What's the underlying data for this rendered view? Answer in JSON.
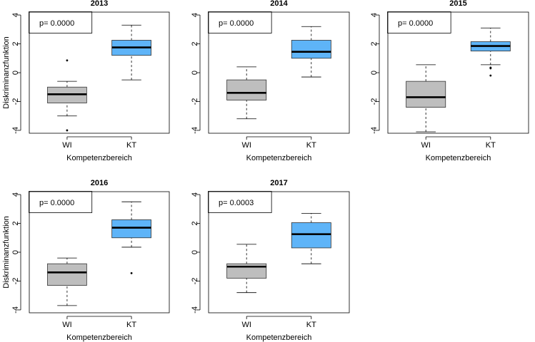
{
  "colors": {
    "WI": "#bebebe",
    "KT": "#5eb4f8",
    "median": "#000000",
    "frame": "#000000"
  },
  "chart_data": [
    {
      "type": "boxplot",
      "title": "2013",
      "xlabel": "Kompetenzbereich",
      "ylabel": "Diskriminanzfunktion",
      "yticks": [
        "4",
        "2",
        "0",
        "-2",
        "-4"
      ],
      "ylim": [
        -4.2,
        4.2
      ],
      "annotation": "p= 0.0000",
      "categories": [
        "WI",
        "KT"
      ],
      "boxes": [
        {
          "name": "WI",
          "whisker_low": -3.0,
          "q1": -2.1,
          "median": -1.5,
          "q3": -1.0,
          "whisker_high": -0.6,
          "outliers": [
            0.85,
            -4.0
          ]
        },
        {
          "name": "KT",
          "whisker_low": -0.5,
          "q1": 1.2,
          "median": 1.75,
          "q3": 2.25,
          "whisker_high": 3.3,
          "outliers": []
        }
      ]
    },
    {
      "type": "boxplot",
      "title": "2014",
      "xlabel": "Kompetenzbereich",
      "ylabel": "",
      "yticks": [
        "4",
        "2",
        "0",
        "-2",
        "-4"
      ],
      "ylim": [
        -4.2,
        4.2
      ],
      "annotation": "p= 0.0000",
      "categories": [
        "WI",
        "KT"
      ],
      "boxes": [
        {
          "name": "WI",
          "whisker_low": -3.2,
          "q1": -1.9,
          "median": -1.4,
          "q3": -0.5,
          "whisker_high": 0.4,
          "outliers": []
        },
        {
          "name": "KT",
          "whisker_low": -0.3,
          "q1": 1.0,
          "median": 1.45,
          "q3": 2.25,
          "whisker_high": 3.2,
          "outliers": []
        }
      ]
    },
    {
      "type": "boxplot",
      "title": "2015",
      "xlabel": "Kompetenzbereich",
      "ylabel": "",
      "yticks": [
        "4",
        "2",
        "0",
        "-2",
        "-4"
      ],
      "ylim": [
        -4.2,
        4.2
      ],
      "annotation": "p= 0.0000",
      "categories": [
        "WI",
        "KT"
      ],
      "boxes": [
        {
          "name": "WI",
          "whisker_low": -4.1,
          "q1": -2.4,
          "median": -1.7,
          "q3": -0.6,
          "whisker_high": 0.55,
          "outliers": []
        },
        {
          "name": "KT",
          "whisker_low": 0.55,
          "q1": 1.5,
          "median": 1.85,
          "q3": 2.15,
          "whisker_high": 3.1,
          "outliers": [
            0.35,
            0.3,
            -0.2
          ]
        }
      ]
    },
    {
      "type": "boxplot",
      "title": "2016",
      "xlabel": "Kompetenzbereich",
      "ylabel": "Diskriminanzfunktion",
      "yticks": [
        "4",
        "2",
        "0",
        "-2",
        "-4"
      ],
      "ylim": [
        -4.2,
        4.2
      ],
      "annotation": "p= 0.0000",
      "categories": [
        "WI",
        "KT"
      ],
      "boxes": [
        {
          "name": "WI",
          "whisker_low": -3.7,
          "q1": -2.3,
          "median": -1.4,
          "q3": -0.8,
          "whisker_high": -0.4,
          "outliers": []
        },
        {
          "name": "KT",
          "whisker_low": 0.35,
          "q1": 1.0,
          "median": 1.7,
          "q3": 2.25,
          "whisker_high": 3.5,
          "outliers": [
            -1.45
          ]
        }
      ]
    },
    {
      "type": "boxplot",
      "title": "2017",
      "xlabel": "Kompetenzbereich",
      "ylabel": "",
      "yticks": [
        "4",
        "2",
        "0",
        "-2",
        "-4"
      ],
      "ylim": [
        -4.2,
        4.2
      ],
      "annotation": "p= 0.0003",
      "categories": [
        "WI",
        "KT"
      ],
      "boxes": [
        {
          "name": "WI",
          "whisker_low": -2.8,
          "q1": -1.8,
          "median": -1.0,
          "q3": -0.8,
          "whisker_high": 0.55,
          "outliers": []
        },
        {
          "name": "KT",
          "whisker_low": -0.8,
          "q1": 0.3,
          "median": 1.25,
          "q3": 2.05,
          "whisker_high": 2.7,
          "outliers": []
        }
      ]
    }
  ]
}
